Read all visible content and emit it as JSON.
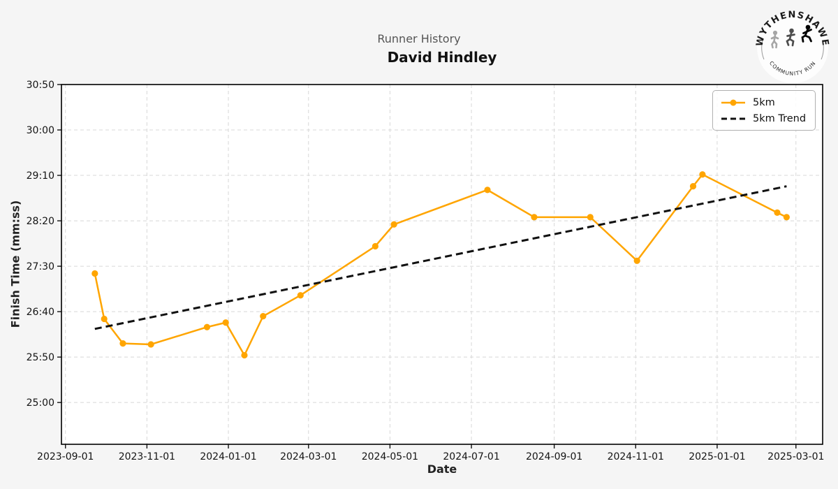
{
  "header": {
    "subtitle": "Runner History",
    "title": "David Hindley"
  },
  "logo": {
    "top_text": "WYTHENSHAWE",
    "bottom_text": "COMMUNITY RUN"
  },
  "chart_data": {
    "type": "line",
    "title": "David Hindley",
    "subtitle": "Runner History",
    "xlabel": "Date",
    "ylabel": "Finish Time (mm:ss)",
    "grid": true,
    "legend_position": "upper right",
    "x_ticks": [
      "2023-09-01",
      "2023-11-01",
      "2024-01-01",
      "2024-03-01",
      "2024-05-01",
      "2024-07-01",
      "2024-09-01",
      "2024-11-01",
      "2025-01-01",
      "2025-03-01"
    ],
    "y_ticks": [
      "30:50",
      "30:00",
      "29:10",
      "28:20",
      "27:30",
      "26:40",
      "25:50",
      "25:00"
    ],
    "x_range": [
      "2023-08-29",
      "2025-03-21"
    ],
    "y_range_mmss": [
      "24:14",
      "30:50"
    ],
    "colors": {
      "series": "#FFA500",
      "trend": "#111111",
      "grid": "#d8d8d8",
      "background": "#f5f5f5",
      "plot_background": "#ffffff"
    },
    "series": [
      {
        "name": "5km",
        "style": "solid-line-with-markers",
        "color": "#FFA500",
        "x": [
          "2023-09-23",
          "2023-09-30",
          "2023-10-14",
          "2023-11-04",
          "2023-12-16",
          "2023-12-30",
          "2024-01-13",
          "2024-01-27",
          "2024-02-24",
          "2024-04-20",
          "2024-05-04",
          "2024-07-13",
          "2024-08-17",
          "2024-09-28",
          "2024-11-02",
          "2024-12-14",
          "2024-12-21",
          "2025-02-15",
          "2025-02-22"
        ],
        "y": [
          "27:22",
          "26:32",
          "26:05",
          "26:04",
          "26:23",
          "26:28",
          "25:52",
          "26:35",
          "26:58",
          "27:52",
          "28:16",
          "28:54",
          "28:24",
          "28:24",
          "27:36",
          "28:58",
          "29:11",
          "28:29",
          "28:24"
        ]
      },
      {
        "name": "5km Trend",
        "style": "dashed",
        "color": "#111111",
        "x": [
          "2023-09-23",
          "2025-02-22"
        ],
        "y": [
          "26:21",
          "28:58"
        ]
      }
    ]
  }
}
